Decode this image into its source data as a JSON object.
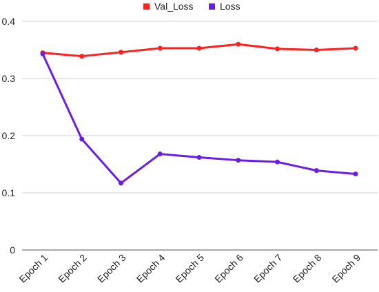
{
  "chart_data": {
    "type": "line",
    "categories": [
      "Epoch 1",
      "Epoch 2",
      "Epoch 3",
      "Epoch 4",
      "Epoch 5",
      "Epoch 6",
      "Epoch 7",
      "Epoch 8",
      "Epoch 9"
    ],
    "series": [
      {
        "name": "Val_Loss",
        "color": "#ff2020",
        "values": [
          0.345,
          0.339,
          0.346,
          0.353,
          0.353,
          0.36,
          0.352,
          0.35,
          0.353
        ]
      },
      {
        "name": "Loss",
        "color": "#6a1de6",
        "values": [
          0.343,
          0.194,
          0.117,
          0.168,
          0.162,
          0.157,
          0.154,
          0.139,
          0.133
        ]
      }
    ],
    "ylim": [
      0,
      0.4
    ],
    "yticks": [
      "0",
      "0.1",
      "0.2",
      "0.3",
      "0.4"
    ],
    "grid": true,
    "legend_position": "top-center",
    "xlabel": "",
    "ylabel": "",
    "title": ""
  }
}
